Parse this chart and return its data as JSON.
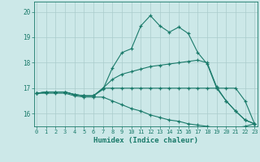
{
  "xlabel": "Humidex (Indice chaleur)",
  "bg_color": "#cce8e8",
  "line_color": "#1a7a6a",
  "grid_color": "#aacccc",
  "x_ticks": [
    0,
    1,
    2,
    3,
    4,
    5,
    6,
    7,
    8,
    9,
    10,
    11,
    12,
    13,
    14,
    15,
    16,
    17,
    18,
    19,
    20,
    21,
    22,
    23
  ],
  "y_ticks": [
    16,
    17,
    18,
    19,
    20
  ],
  "xlim": [
    -0.3,
    23.3
  ],
  "ylim": [
    15.5,
    20.4
  ],
  "line1_y": [
    16.8,
    16.85,
    16.85,
    16.85,
    16.75,
    16.7,
    16.7,
    16.95,
    17.8,
    18.4,
    18.55,
    19.45,
    19.85,
    19.45,
    19.2,
    19.4,
    19.15,
    18.4,
    17.95,
    17.0,
    16.5,
    16.1,
    15.75,
    15.6
  ],
  "line2_y": [
    16.8,
    16.85,
    16.85,
    16.85,
    16.75,
    16.7,
    16.7,
    17.0,
    17.35,
    17.55,
    17.65,
    17.75,
    17.85,
    17.9,
    17.95,
    18.0,
    18.05,
    18.1,
    18.0,
    17.05,
    16.5,
    16.1,
    15.75,
    15.6
  ],
  "line3_y": [
    16.8,
    16.85,
    16.85,
    16.85,
    16.75,
    16.7,
    16.7,
    17.0,
    17.0,
    17.0,
    17.0,
    17.0,
    17.0,
    17.0,
    17.0,
    17.0,
    17.0,
    17.0,
    17.0,
    17.0,
    17.0,
    17.0,
    16.5,
    15.6
  ],
  "line4_y": [
    16.8,
    16.8,
    16.8,
    16.8,
    16.7,
    16.65,
    16.65,
    16.65,
    16.5,
    16.35,
    16.2,
    16.1,
    15.95,
    15.85,
    15.75,
    15.7,
    15.6,
    15.55,
    15.5,
    15.45,
    15.45,
    15.45,
    15.5,
    15.6
  ]
}
